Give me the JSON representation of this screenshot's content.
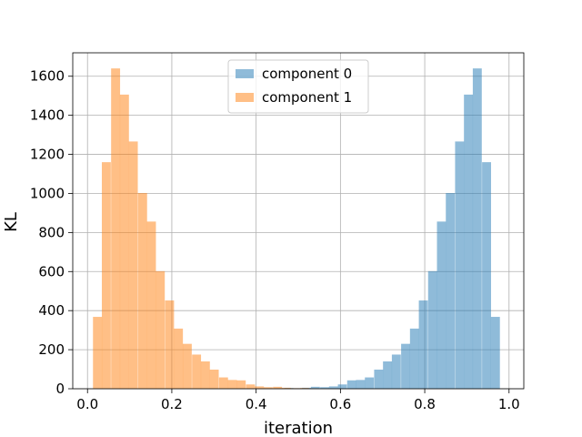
{
  "chart_data": {
    "type": "bar",
    "subtype": "overlaid-histogram",
    "title": "",
    "xlabel": "iteration",
    "ylabel": "KL",
    "xlim": [
      -0.035,
      1.035
    ],
    "ylim": [
      0,
      1720
    ],
    "xticks": [
      0.0,
      0.2,
      0.4,
      0.6,
      0.8,
      1.0
    ],
    "xtick_labels": [
      "0.0",
      "0.2",
      "0.4",
      "0.6",
      "0.8",
      "1.0"
    ],
    "yticks": [
      0,
      200,
      400,
      600,
      800,
      1000,
      1200,
      1400,
      1600
    ],
    "ytick_labels": [
      "0",
      "200",
      "400",
      "600",
      "800",
      "1000",
      "1200",
      "1400",
      "1600"
    ],
    "grid": true,
    "legend_position": "upper-center",
    "series": [
      {
        "name": "component 0",
        "color": "#1f77b4",
        "opacity": 0.5,
        "bin_starts": [
          0.445,
          0.467,
          0.488,
          0.509,
          0.53,
          0.552,
          0.573,
          0.594,
          0.616,
          0.637,
          0.658,
          0.68,
          0.701,
          0.722,
          0.744,
          0.765,
          0.786,
          0.808,
          0.829,
          0.85,
          0.872,
          0.893,
          0.914,
          0.936,
          0.957
        ],
        "bin_width": 0.0213,
        "values": [
          2,
          4,
          3,
          5,
          10,
          8,
          12,
          22,
          43,
          45,
          58,
          98,
          140,
          175,
          230,
          308,
          452,
          602,
          856,
          1002,
          1266,
          1506,
          1640,
          1160,
          368
        ]
      },
      {
        "name": "component 1",
        "color": "#ff7f0e",
        "opacity": 0.5,
        "bin_starts": [
          0.013,
          0.034,
          0.056,
          0.077,
          0.098,
          0.12,
          0.141,
          0.162,
          0.184,
          0.205,
          0.226,
          0.248,
          0.269,
          0.29,
          0.312,
          0.333,
          0.354,
          0.376,
          0.397,
          0.418,
          0.44,
          0.461,
          0.482,
          0.504,
          0.525
        ],
        "bin_width": 0.0213,
        "values": [
          368,
          1160,
          1640,
          1506,
          1266,
          1002,
          856,
          602,
          452,
          308,
          230,
          175,
          140,
          98,
          58,
          45,
          43,
          22,
          12,
          8,
          10,
          5,
          3,
          4,
          2
        ]
      }
    ]
  }
}
